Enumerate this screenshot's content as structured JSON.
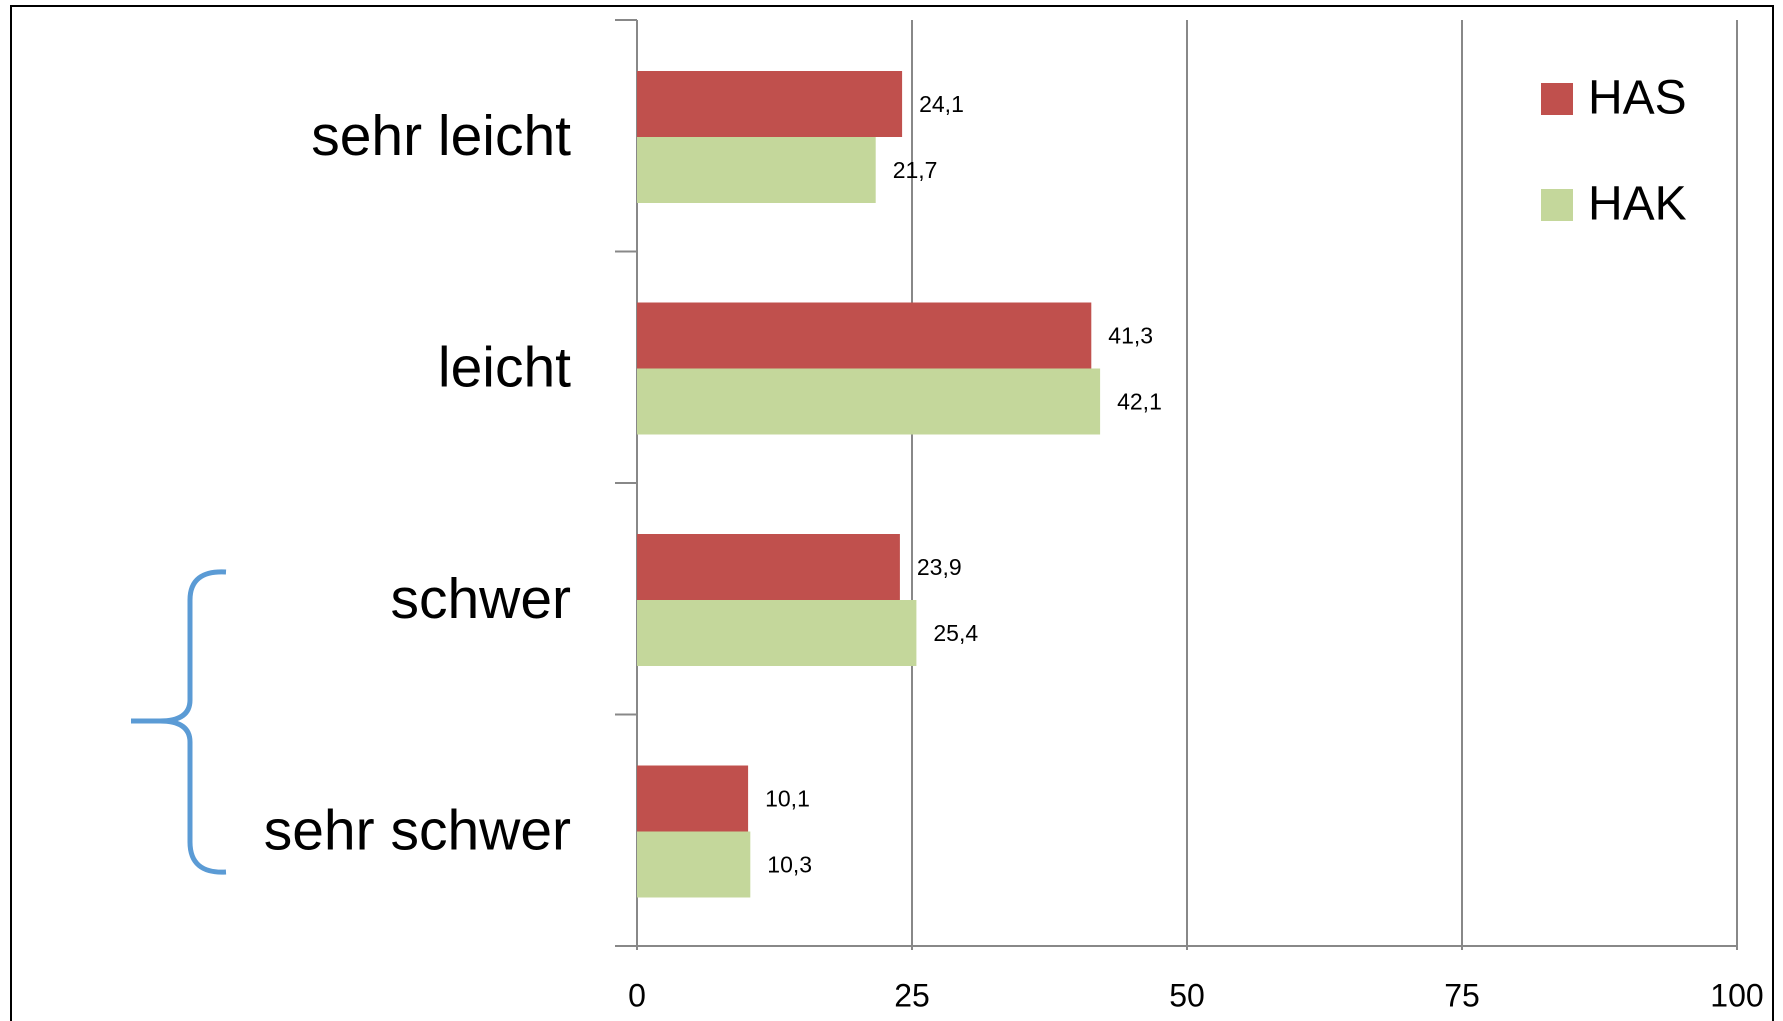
{
  "chart_data": {
    "type": "bar",
    "orientation": "horizontal",
    "categories": [
      "sehr leicht",
      "leicht",
      "schwer",
      "sehr schwer"
    ],
    "series": [
      {
        "name": "HAS",
        "color": "#c0504d",
        "values": [
          24.1,
          41.3,
          23.9,
          10.1
        ],
        "value_labels": [
          "24,1",
          "41,3",
          "23,9",
          "10,1"
        ]
      },
      {
        "name": "HAK",
        "color": "#c4d79b",
        "values": [
          21.7,
          42.1,
          25.4,
          10.3
        ],
        "value_labels": [
          "21,7",
          "42,1",
          "25,4",
          "10,3"
        ]
      }
    ],
    "xlim": [
      0,
      100
    ],
    "xticks": [
      0,
      25,
      50,
      75,
      100
    ],
    "grid": true,
    "legend": "top-right"
  }
}
